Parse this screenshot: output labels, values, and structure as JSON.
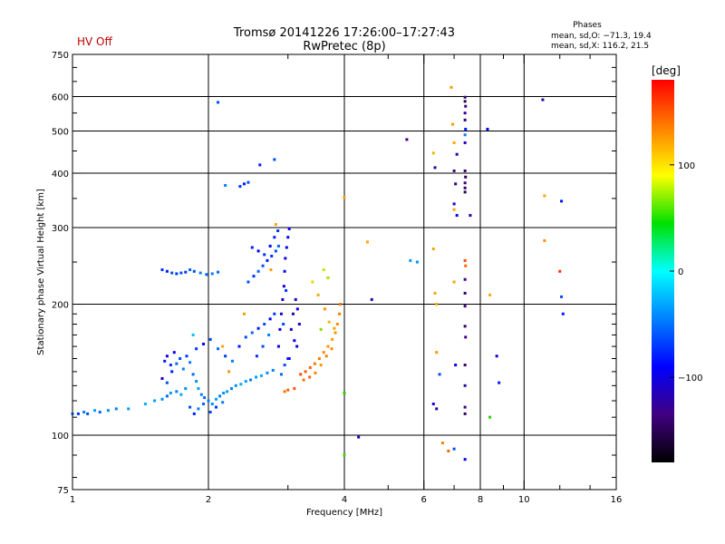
{
  "chart_data": {
    "type": "scatter",
    "title": "Tromsø 20141226 17:26:00–17:27:43",
    "subtitle": "RwPretec (8p)",
    "status_label": "HV Off",
    "xlabel": "Frequency [MHz]",
    "ylabel": "Stationary phase Virtual Height [km]",
    "x_scale": "log",
    "y_scale": "log",
    "xlim": [
      1,
      16
    ],
    "ylim": [
      75,
      750
    ],
    "x_ticks": [
      1,
      2,
      4,
      6,
      8,
      10,
      16
    ],
    "x_tick_labels": [
      "1",
      "2",
      "4",
      "6",
      "8",
      "10",
      "16"
    ],
    "x_minor_ticks": [
      3,
      5,
      7,
      9,
      12,
      14
    ],
    "y_ticks": [
      75,
      100,
      200,
      300,
      400,
      500,
      600,
      750
    ],
    "y_tick_labels": [
      "75",
      "100",
      "200",
      "300",
      "400",
      "500",
      "600",
      "750"
    ],
    "y_minor_ticks": [
      80,
      90,
      110,
      120,
      130,
      140,
      150,
      160,
      170,
      180,
      190,
      250,
      350,
      450,
      550,
      650,
      700
    ],
    "grid": true,
    "legend": {
      "title": "Phases",
      "line1": "mean, sd,O: −71.3, 19.4",
      "line2": "mean, sd,X: 116.2, 21.5"
    },
    "colorbar": {
      "label": "[deg]",
      "range": [
        -180,
        180
      ],
      "ticks": [
        100,
        0,
        -100
      ],
      "tick_labels": [
        "100",
        "0",
        "−100"
      ],
      "colors": [
        "#ff0000",
        "#ff8000",
        "#ffff00",
        "#00e000",
        "#00ffff",
        "#0080ff",
        "#0000ff",
        "#400080",
        "#000000"
      ]
    },
    "series": [
      {
        "name": "echoes",
        "points": [
          [
            1.0,
            112,
            -70
          ],
          [
            1.03,
            112,
            -85
          ],
          [
            1.06,
            113,
            -70
          ],
          [
            1.08,
            112,
            -80
          ],
          [
            1.12,
            114,
            -60
          ],
          [
            1.15,
            113,
            -75
          ],
          [
            1.2,
            114,
            -65
          ],
          [
            1.25,
            115,
            -70
          ],
          [
            1.33,
            115,
            -60
          ],
          [
            1.45,
            118,
            -55
          ],
          [
            1.52,
            120,
            -60
          ],
          [
            1.58,
            121,
            -65
          ],
          [
            1.62,
            123,
            -75
          ],
          [
            1.65,
            125,
            -60
          ],
          [
            1.7,
            126,
            -70
          ],
          [
            1.74,
            124,
            -55
          ],
          [
            1.78,
            128,
            -65
          ],
          [
            1.6,
            148,
            -90
          ],
          [
            1.62,
            152,
            -100
          ],
          [
            1.65,
            145,
            -85
          ],
          [
            1.68,
            155,
            -95
          ],
          [
            1.58,
            135,
            -110
          ],
          [
            1.62,
            132,
            -80
          ],
          [
            1.66,
            140,
            -90
          ],
          [
            1.7,
            146,
            -75
          ],
          [
            1.73,
            150,
            -80
          ],
          [
            1.76,
            142,
            -70
          ],
          [
            1.79,
            152,
            -85
          ],
          [
            1.82,
            147,
            -70
          ],
          [
            1.85,
            138,
            -75
          ],
          [
            1.88,
            133,
            -65
          ],
          [
            1.9,
            128,
            -60
          ],
          [
            1.93,
            124,
            -70
          ],
          [
            1.96,
            122,
            -75
          ],
          [
            2.0,
            120,
            -70
          ],
          [
            2.04,
            118,
            -65
          ],
          [
            2.08,
            121,
            -60
          ],
          [
            2.12,
            123,
            -70
          ],
          [
            2.16,
            125,
            -65
          ],
          [
            2.2,
            126,
            -60
          ],
          [
            2.25,
            128,
            -70
          ],
          [
            2.3,
            130,
            -65
          ],
          [
            2.36,
            131,
            -55
          ],
          [
            2.42,
            133,
            -60
          ],
          [
            2.48,
            134,
            -70
          ],
          [
            2.55,
            136,
            -60
          ],
          [
            2.62,
            137,
            -55
          ],
          [
            2.7,
            139,
            -65
          ],
          [
            2.78,
            141,
            -70
          ],
          [
            1.82,
            116,
            -80
          ],
          [
            1.86,
            112,
            -90
          ],
          [
            1.9,
            115,
            -70
          ],
          [
            1.95,
            118,
            -75
          ],
          [
            2.02,
            113,
            -80
          ],
          [
            2.08,
            116,
            -85
          ],
          [
            2.15,
            119,
            -70
          ],
          [
            1.88,
            158,
            -85
          ],
          [
            1.95,
            162,
            -95
          ],
          [
            2.02,
            166,
            -80
          ],
          [
            2.1,
            158,
            -75
          ],
          [
            2.18,
            152,
            -85
          ],
          [
            2.26,
            148,
            -70
          ],
          [
            2.34,
            160,
            -90
          ],
          [
            2.42,
            168,
            -80
          ],
          [
            2.5,
            172,
            -75
          ],
          [
            2.58,
            176,
            -90
          ],
          [
            2.66,
            180,
            -80
          ],
          [
            2.74,
            185,
            -95
          ],
          [
            2.8,
            190,
            -85
          ],
          [
            2.72,
            170,
            -70
          ],
          [
            2.64,
            160,
            -80
          ],
          [
            2.56,
            152,
            -85
          ],
          [
            2.86,
            160,
            -100
          ],
          [
            2.88,
            175,
            -105
          ],
          [
            2.9,
            190,
            -110
          ],
          [
            2.92,
            205,
            -105
          ],
          [
            2.94,
            220,
            -110
          ],
          [
            2.95,
            238,
            -100
          ],
          [
            2.96,
            255,
            -105
          ],
          [
            2.98,
            270,
            -95
          ],
          [
            3.0,
            285,
            -100
          ],
          [
            3.02,
            298,
            -95
          ],
          [
            2.93,
            180,
            -80
          ],
          [
            2.97,
            215,
            -85
          ],
          [
            3.05,
            175,
            -110
          ],
          [
            3.08,
            190,
            -120
          ],
          [
            3.12,
            205,
            -115
          ],
          [
            3.15,
            195,
            -105
          ],
          [
            3.18,
            180,
            -110
          ],
          [
            3.1,
            165,
            -100
          ],
          [
            3.02,
            150,
            -95
          ],
          [
            3.14,
            160,
            -105
          ],
          [
            2.95,
            145,
            -80
          ],
          [
            3.0,
            150,
            -90
          ],
          [
            2.9,
            138,
            -75
          ],
          [
            2.45,
            225,
            -80
          ],
          [
            2.52,
            232,
            -85
          ],
          [
            2.58,
            238,
            -75
          ],
          [
            2.64,
            245,
            -80
          ],
          [
            2.7,
            252,
            -90
          ],
          [
            2.76,
            258,
            -85
          ],
          [
            2.82,
            265,
            -80
          ],
          [
            2.86,
            272,
            -75
          ],
          [
            2.5,
            270,
            -90
          ],
          [
            2.58,
            265,
            -95
          ],
          [
            2.66,
            260,
            -85
          ],
          [
            2.74,
            272,
            -95
          ],
          [
            2.8,
            285,
            -90
          ],
          [
            2.85,
            295,
            -85
          ],
          [
            1.58,
            240,
            -85
          ],
          [
            1.62,
            238,
            -90
          ],
          [
            1.66,
            236,
            -80
          ],
          [
            1.7,
            235,
            -85
          ],
          [
            1.74,
            236,
            -80
          ],
          [
            1.78,
            237,
            -85
          ],
          [
            1.82,
            240,
            -75
          ],
          [
            1.86,
            238,
            -80
          ],
          [
            1.92,
            236,
            -70
          ],
          [
            1.98,
            234,
            -75
          ],
          [
            2.04,
            235,
            -70
          ],
          [
            2.1,
            237,
            -75
          ],
          [
            1.85,
            170,
            -50
          ],
          [
            2.15,
            160,
            110
          ],
          [
            2.22,
            140,
            120
          ],
          [
            2.4,
            190,
            115
          ],
          [
            2.35,
            373,
            -85
          ],
          [
            2.4,
            378,
            -90
          ],
          [
            2.45,
            381,
            -80
          ],
          [
            2.6,
            418,
            -90
          ],
          [
            2.8,
            430,
            -80
          ],
          [
            2.18,
            375,
            -70
          ],
          [
            2.1,
            582,
            -80
          ],
          [
            2.82,
            305,
            110
          ],
          [
            2.75,
            240,
            115
          ],
          [
            3.2,
            138,
            150
          ],
          [
            3.28,
            140,
            145
          ],
          [
            3.36,
            143,
            140
          ],
          [
            3.44,
            146,
            135
          ],
          [
            3.52,
            150,
            130
          ],
          [
            3.6,
            155,
            125
          ],
          [
            3.68,
            160,
            120
          ],
          [
            3.76,
            166,
            115
          ],
          [
            3.82,
            172,
            120
          ],
          [
            3.86,
            180,
            125
          ],
          [
            3.9,
            190,
            130
          ],
          [
            3.92,
            200,
            135
          ],
          [
            3.25,
            134,
            135
          ],
          [
            3.35,
            136,
            140
          ],
          [
            3.45,
            139,
            125
          ],
          [
            3.55,
            145,
            120
          ],
          [
            3.65,
            152,
            130
          ],
          [
            3.75,
            158,
            125
          ],
          [
            3.8,
            176,
            110
          ],
          [
            3.7,
            182,
            100
          ],
          [
            3.1,
            128,
            145
          ],
          [
            3.0,
            127,
            140
          ],
          [
            2.95,
            126,
            135
          ],
          [
            3.62,
            195,
            120
          ],
          [
            3.5,
            210,
            110
          ],
          [
            3.4,
            225,
            80
          ],
          [
            3.6,
            240,
            60
          ],
          [
            3.68,
            230,
            50
          ],
          [
            3.55,
            175,
            40
          ],
          [
            4.0,
            352,
            110
          ],
          [
            4.0,
            125,
            10
          ],
          [
            4.0,
            90,
            20
          ],
          [
            4.3,
            99,
            -110
          ],
          [
            4.5,
            278,
            110
          ],
          [
            4.6,
            205,
            -120
          ],
          [
            5.5,
            478,
            -130
          ],
          [
            5.6,
            252,
            -60
          ],
          [
            5.8,
            250,
            -65
          ],
          [
            6.3,
            445,
            100
          ],
          [
            6.35,
            412,
            -120
          ],
          [
            6.3,
            268,
            110
          ],
          [
            6.35,
            212,
            110
          ],
          [
            6.4,
            200,
            105
          ],
          [
            6.4,
            155,
            120
          ],
          [
            6.5,
            138,
            -80
          ],
          [
            6.3,
            118,
            -110
          ],
          [
            6.4,
            115,
            -120
          ],
          [
            6.6,
            96,
            130
          ],
          [
            6.8,
            92,
            140
          ],
          [
            6.9,
            630,
            120
          ],
          [
            6.95,
            518,
            115
          ],
          [
            7.0,
            470,
            110
          ],
          [
            7.1,
            442,
            -120
          ],
          [
            7.0,
            405,
            -130
          ],
          [
            7.05,
            378,
            -140
          ],
          [
            7.0,
            340,
            -110
          ],
          [
            7.0,
            330,
            110
          ],
          [
            7.1,
            320,
            -100
          ],
          [
            7.0,
            225,
            110
          ],
          [
            7.05,
            145,
            -100
          ],
          [
            7.0,
            93,
            -80
          ],
          [
            7.4,
            598,
            -140
          ],
          [
            7.4,
            585,
            -150
          ],
          [
            7.42,
            570,
            -130
          ],
          [
            7.4,
            550,
            -120
          ],
          [
            7.4,
            530,
            -140
          ],
          [
            7.42,
            505,
            -90
          ],
          [
            7.4,
            490,
            -70
          ],
          [
            7.4,
            470,
            -110
          ],
          [
            7.4,
            405,
            -140
          ],
          [
            7.42,
            392,
            -150
          ],
          [
            7.4,
            380,
            -130
          ],
          [
            7.4,
            370,
            -140
          ],
          [
            7.4,
            362,
            -150
          ],
          [
            7.4,
            252,
            150
          ],
          [
            7.42,
            245,
            140
          ],
          [
            7.4,
            228,
            -130
          ],
          [
            7.4,
            212,
            -140
          ],
          [
            7.4,
            198,
            -130
          ],
          [
            7.4,
            178,
            -140
          ],
          [
            7.42,
            168,
            -130
          ],
          [
            7.4,
            145,
            -140
          ],
          [
            7.4,
            130,
            -120
          ],
          [
            7.4,
            116,
            -130
          ],
          [
            7.4,
            112,
            -140
          ],
          [
            7.4,
            88,
            -100
          ],
          [
            7.6,
            320,
            -120
          ],
          [
            8.3,
            505,
            -100
          ],
          [
            8.4,
            210,
            110
          ],
          [
            8.4,
            110,
            10
          ],
          [
            8.7,
            152,
            -110
          ],
          [
            8.8,
            132,
            -90
          ],
          [
            11.0,
            590,
            -120
          ],
          [
            11.1,
            355,
            110
          ],
          [
            11.1,
            280,
            120
          ],
          [
            12.1,
            345,
            -90
          ],
          [
            12.0,
            238,
            160
          ],
          [
            12.1,
            208,
            -80
          ],
          [
            12.2,
            190,
            -90
          ]
        ]
      }
    ]
  }
}
